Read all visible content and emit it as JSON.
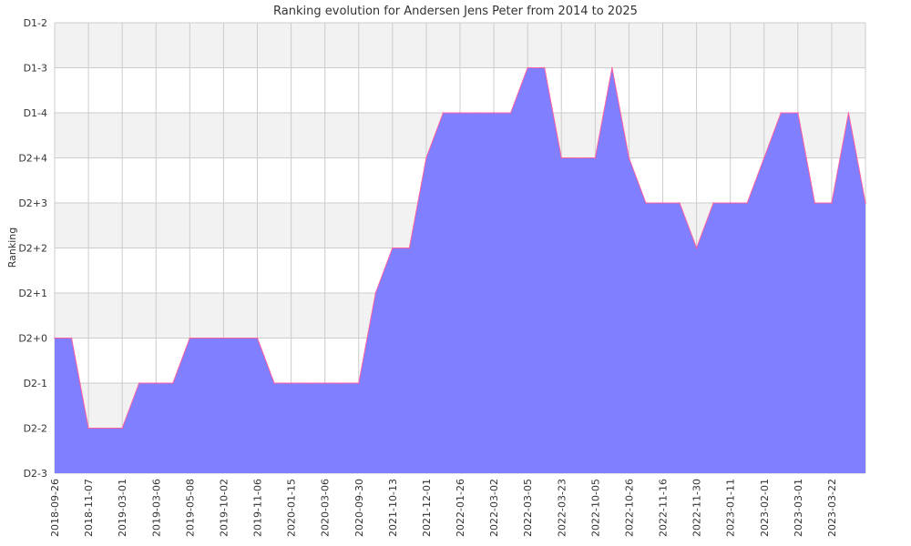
{
  "chart_data": {
    "type": "area",
    "title": "Ranking evolution for Andersen Jens Peter from 2014 to 2025",
    "xlabel": "",
    "ylabel": "Ranking",
    "y_categories": [
      "D2-3",
      "D2-2",
      "D2-1",
      "D2+0",
      "D2+1",
      "D2+2",
      "D2+3",
      "D2+4",
      "D1-4",
      "D1-3",
      "D1-2"
    ],
    "x_tick_labels": [
      "2018-09-26",
      "2018-11-07",
      "2019-03-01",
      "2019-03-06",
      "2019-05-08",
      "2019-10-02",
      "2019-11-06",
      "2020-01-15",
      "2020-03-06",
      "2020-09-30",
      "2021-10-13",
      "2021-12-01",
      "2022-01-26",
      "2022-03-02",
      "2022-03-05",
      "2022-03-23",
      "2022-10-05",
      "2022-10-26",
      "2022-11-16",
      "2022-11-30",
      "2023-01-11",
      "2023-02-01",
      "2023-03-01",
      "2023-03-22"
    ],
    "series": [
      {
        "values": [
          "D2+0",
          "D2+0",
          "D2-2",
          "D2-2",
          "D2-2",
          "D2-1",
          "D2-1",
          "D2-1",
          "D2+0",
          "D2+0",
          "D2+0",
          "D2+0",
          "D2+0",
          "D2-1",
          "D2-1",
          "D2-1",
          "D2-1",
          "D2-1",
          "D2-1",
          "D2+1",
          "D2+2",
          "D2+2",
          "D2+4",
          "D1-4",
          "D1-4",
          "D1-4",
          "D1-4",
          "D1-4",
          "D1-3",
          "D1-3",
          "D2+4",
          "D2+4",
          "D2+4",
          "D1-3",
          "D2+4",
          "D2+3",
          "D2+3",
          "D2+3",
          "D2+2",
          "D2+3",
          "D2+3",
          "D2+3",
          "D2+4",
          "D1-4",
          "D1-4",
          "D2+3",
          "D2+3",
          "D1-4",
          "D2+3"
        ]
      }
    ],
    "colors": {
      "fill": "#7f7fff",
      "line": "#ff5f9f",
      "band": "#f2f2f2",
      "grid": "#cccccc"
    },
    "grid": true,
    "legend": "none"
  }
}
